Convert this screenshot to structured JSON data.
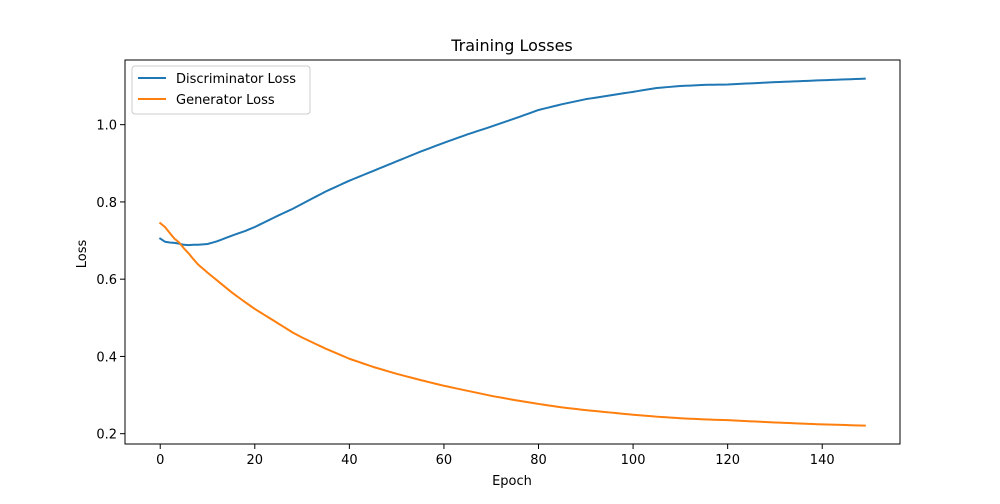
{
  "chart_data": {
    "type": "line",
    "title": "Training Losses",
    "xlabel": "Epoch",
    "ylabel": "Loss",
    "xlim": [
      -7.45,
      156.45
    ],
    "ylim": [
      0.1733,
      1.1674
    ],
    "xticks": [
      0,
      20,
      40,
      60,
      80,
      100,
      120,
      140
    ],
    "yticks": [
      0.2,
      0.4,
      0.6,
      0.8,
      1.0
    ],
    "ytick_labels": [
      "0.2",
      "0.4",
      "0.6",
      "0.8",
      "1.0"
    ],
    "grid": false,
    "legend_position": "upper-left",
    "x_anchors": [
      0,
      1,
      2,
      3,
      4,
      5,
      6,
      7,
      8,
      10,
      12,
      15,
      18,
      20,
      25,
      28,
      30,
      35,
      40,
      45,
      50,
      55,
      60,
      65,
      70,
      75,
      80,
      85,
      90,
      100,
      105,
      110,
      115,
      120,
      125,
      130,
      140,
      149
    ],
    "series": [
      {
        "name": "Discriminator Loss",
        "color": "#1f77b4",
        "values": [
          0.705,
          0.697,
          0.695,
          0.694,
          0.692,
          0.689,
          0.688,
          0.689,
          0.689,
          0.691,
          0.698,
          0.712,
          0.725,
          0.735,
          0.765,
          0.782,
          0.795,
          0.827,
          0.855,
          0.88,
          0.905,
          0.93,
          0.953,
          0.975,
          0.995,
          1.016,
          1.038,
          1.053,
          1.066,
          1.085,
          1.095,
          1.1,
          1.103,
          1.104,
          1.107,
          1.11,
          1.115,
          1.119
        ]
      },
      {
        "name": "Generator Loss",
        "color": "#ff7f0e",
        "values": [
          0.745,
          0.735,
          0.72,
          0.705,
          0.695,
          0.68,
          0.667,
          0.652,
          0.638,
          0.617,
          0.597,
          0.567,
          0.54,
          0.523,
          0.485,
          0.462,
          0.449,
          0.42,
          0.394,
          0.373,
          0.355,
          0.339,
          0.324,
          0.311,
          0.298,
          0.287,
          0.277,
          0.268,
          0.261,
          0.249,
          0.244,
          0.24,
          0.237,
          0.235,
          0.232,
          0.229,
          0.224,
          0.221
        ]
      }
    ]
  }
}
